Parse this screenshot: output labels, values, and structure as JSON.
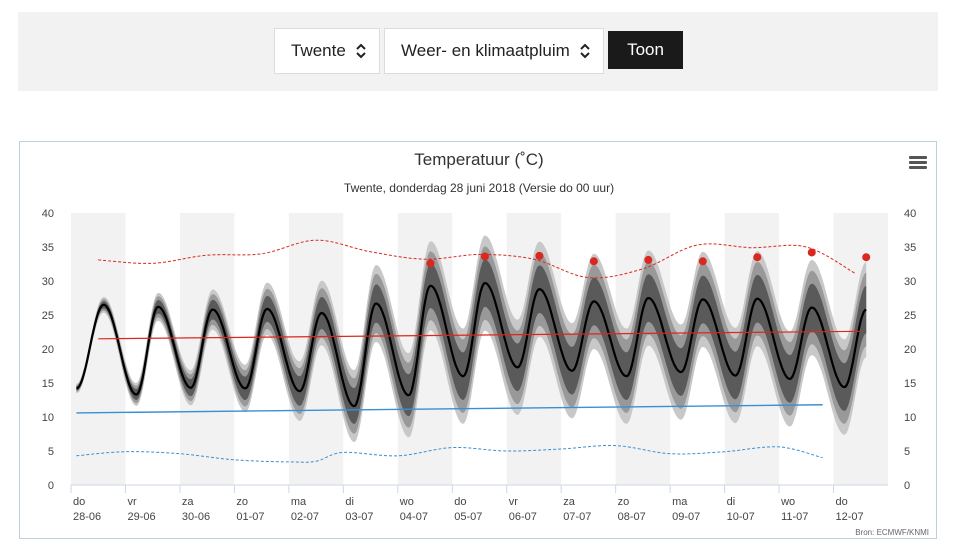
{
  "controls": {
    "location_select": "Twente",
    "product_select": "Weer- en klimaatpluim",
    "show_button": "Toon"
  },
  "chart_data": {
    "type": "line",
    "title": "Temperatuur (˚C)",
    "subtitle": "Twente, donderdag 28 juni 2018 (Versie do 00 uur)",
    "credit": "Bron: ECMWF/KNMI",
    "ylim": [
      0,
      40
    ],
    "yticks": [
      0,
      5,
      10,
      15,
      20,
      25,
      30,
      35,
      40
    ],
    "grid": "alternating day bands",
    "x_range_days": [
      0,
      15
    ],
    "x_labels": [
      {
        "day": "do",
        "date": "28-06"
      },
      {
        "day": "vr",
        "date": "29-06"
      },
      {
        "day": "za",
        "date": "30-06"
      },
      {
        "day": "zo",
        "date": "01-07"
      },
      {
        "day": "ma",
        "date": "02-07"
      },
      {
        "day": "di",
        "date": "03-07"
      },
      {
        "day": "wo",
        "date": "04-07"
      },
      {
        "day": "do",
        "date": "05-07"
      },
      {
        "day": "vr",
        "date": "06-07"
      },
      {
        "day": "za",
        "date": "07-07"
      },
      {
        "day": "zo",
        "date": "08-07"
      },
      {
        "day": "ma",
        "date": "09-07"
      },
      {
        "day": "di",
        "date": "10-07"
      },
      {
        "day": "wo",
        "date": "11-07"
      },
      {
        "day": "do",
        "date": "12-07"
      }
    ],
    "median": {
      "color": "#000000",
      "daily_max": [
        26.5,
        26.2,
        25.8,
        25.9,
        25.3,
        26.7,
        29.3,
        29.7,
        28.8,
        27.0,
        27.5,
        27.3,
        27.4,
        26.1
      ],
      "daily_min": [
        13.3,
        14.3,
        14.2,
        13.8,
        11.6,
        13.2,
        16.0,
        17.3,
        16.8,
        16.0,
        16.6,
        16.1,
        15.6,
        14.4
      ],
      "start": 14.2,
      "end": 25.8
    },
    "inner_band": {
      "color": "#5a5a5a",
      "half_width_start": 0.3,
      "half_width_end": 3.5
    },
    "mid_band": {
      "color": "#999999",
      "half_width_start": 0.5,
      "half_width_end": 5.4
    },
    "outer_band": {
      "color": "#c8c8c8",
      "half_width_start": 0.7,
      "half_width_end": 7.0
    },
    "record_max": {
      "color": "#d9281f",
      "x": [
        0.5,
        1.5,
        2.5,
        3.5,
        4.5,
        5.5,
        6.5,
        7.5,
        8.5,
        9.5,
        10.5,
        11.5,
        12.5,
        13.5,
        14.4
      ],
      "y": [
        33.1,
        32.6,
        33.8,
        34.0,
        36.0,
        34.3,
        33.2,
        33.9,
        33.2,
        30.5,
        31.8,
        35.3,
        34.9,
        35.0,
        31.1
      ]
    },
    "climate_mean_max": {
      "color": "#d9281f",
      "x": [
        0.5,
        14.5
      ],
      "y": [
        21.5,
        22.6
      ]
    },
    "climate_mean_min": {
      "color": "#3a8fd1",
      "x": [
        0.1,
        13.8
      ],
      "y": [
        10.6,
        11.8
      ]
    },
    "record_min": {
      "color": "#3a8fd1",
      "x": [
        0.1,
        1.0,
        2.0,
        3.0,
        4.0,
        4.5,
        5.0,
        6.0,
        7.0,
        8.0,
        9.0,
        10.0,
        11.0,
        12.0,
        13.0,
        13.8
      ],
      "y": [
        4.3,
        4.9,
        4.6,
        3.7,
        3.4,
        3.5,
        4.8,
        4.3,
        5.5,
        5.0,
        5.3,
        5.8,
        4.6,
        4.9,
        5.6,
        4.0
      ]
    },
    "outlier_points": {
      "color": "#d9281f",
      "x": [
        6.6,
        7.6,
        8.6,
        9.6,
        10.6,
        11.6,
        12.6,
        13.6,
        14.6
      ],
      "y": [
        32.6,
        33.6,
        33.7,
        32.9,
        33.1,
        32.9,
        33.5,
        34.2,
        33.5
      ]
    }
  }
}
